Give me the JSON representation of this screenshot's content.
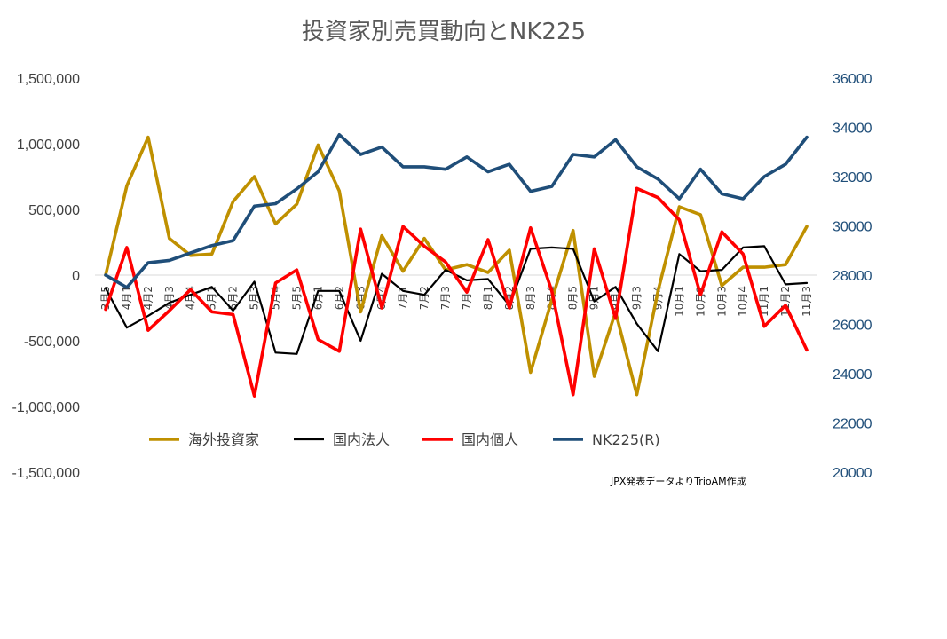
{
  "chart_data": {
    "type": "line",
    "title": "投資家別売買動向とNK225",
    "note": "JPX発表データよりTrioAM作成",
    "categories": [
      "3月5週",
      "4月1週",
      "4月2週",
      "4月3週",
      "4月4週",
      "5月1週",
      "5月2週",
      "5月3週",
      "5月4週",
      "5月5週",
      "6月1週",
      "6月2週",
      "6月3週",
      "6月4週",
      "7月1週",
      "7月2週",
      "7月3週",
      "7月4週",
      "8月1週",
      "8月2週",
      "8月3週",
      "8月4週",
      "8月5週",
      "9月1週",
      "9月2週",
      "9月3週",
      "9月4週",
      "10月1週",
      "10月2週",
      "10月3週",
      "10月4週",
      "11月1週",
      "11月2週",
      "11月3週"
    ],
    "category_labels": [
      "3月5",
      "4月1",
      "4月2",
      "4月3",
      "4月4",
      "5月1",
      "5月2",
      "5月3",
      "5月4",
      "5月5",
      "6月1",
      "6月2",
      "6月3",
      "6月4",
      "7月1",
      "7月2",
      "7月3",
      "7月4",
      "8月1",
      "8月2",
      "8月3",
      "8月4",
      "8月5",
      "9月1",
      "9月2",
      "9月3",
      "9月4",
      "10月1",
      "10月2",
      "10月3",
      "10月4",
      "11月1",
      "11月2",
      "11月3"
    ],
    "y_left": {
      "ylim": [
        -1500000,
        1500000
      ],
      "ticks": [
        "1,500,000",
        "1,000,000",
        "500,000",
        "0",
        "-500,000",
        "-1,000,000",
        "-1,500,000"
      ],
      "tick_values": [
        1500000,
        1000000,
        500000,
        0,
        -500000,
        -1000000,
        -1500000
      ]
    },
    "y_right": {
      "ylim": [
        20000,
        36000
      ],
      "ticks": [
        "36000",
        "34000",
        "32000",
        "30000",
        "28000",
        "26000",
        "24000",
        "22000",
        "20000"
      ],
      "tick_values": [
        36000,
        34000,
        32000,
        30000,
        28000,
        26000,
        24000,
        22000,
        20000
      ]
    },
    "series": [
      {
        "name": "海外投資家",
        "axis": "left",
        "color": "#BF9000",
        "values": [
          0,
          680000,
          1050000,
          280000,
          150000,
          160000,
          560000,
          750000,
          390000,
          540000,
          990000,
          640000,
          -280000,
          300000,
          30000,
          280000,
          40000,
          80000,
          20000,
          190000,
          -740000,
          -190000,
          340000,
          -770000,
          -280000,
          -910000,
          -120000,
          520000,
          460000,
          -80000,
          60000,
          60000,
          80000,
          370000
        ]
      },
      {
        "name": "国内法人",
        "axis": "left",
        "color": "#000000",
        "values": [
          -100000,
          -400000,
          -310000,
          -210000,
          -150000,
          -90000,
          -270000,
          -50000,
          -590000,
          -600000,
          -120000,
          -120000,
          -500000,
          10000,
          -120000,
          -150000,
          40000,
          -40000,
          -30000,
          -230000,
          200000,
          210000,
          200000,
          -200000,
          -90000,
          -370000,
          -580000,
          160000,
          30000,
          40000,
          210000,
          220000,
          -70000,
          -60000
        ]
      },
      {
        "name": "国内個人",
        "axis": "left",
        "color": "#FF0000",
        "values": [
          -260000,
          210000,
          -420000,
          -270000,
          -110000,
          -280000,
          -300000,
          -920000,
          -60000,
          40000,
          -490000,
          -580000,
          350000,
          -250000,
          370000,
          220000,
          100000,
          -130000,
          270000,
          -250000,
          360000,
          -120000,
          -910000,
          200000,
          -330000,
          660000,
          590000,
          420000,
          -150000,
          330000,
          160000,
          -390000,
          -230000,
          -570000
        ]
      },
      {
        "name": "NK225(R)",
        "axis": "right",
        "color": "#1F4E79",
        "values": [
          28000,
          27500,
          28500,
          28600,
          28900,
          29200,
          29400,
          30800,
          30900,
          31500,
          32200,
          33700,
          32900,
          33200,
          32400,
          32400,
          32300,
          32800,
          32200,
          32500,
          31400,
          31600,
          32900,
          32800,
          33500,
          32400,
          31900,
          31100,
          32300,
          31300,
          31100,
          32000,
          32500,
          33600
        ]
      }
    ],
    "legend_position": "bottom"
  }
}
